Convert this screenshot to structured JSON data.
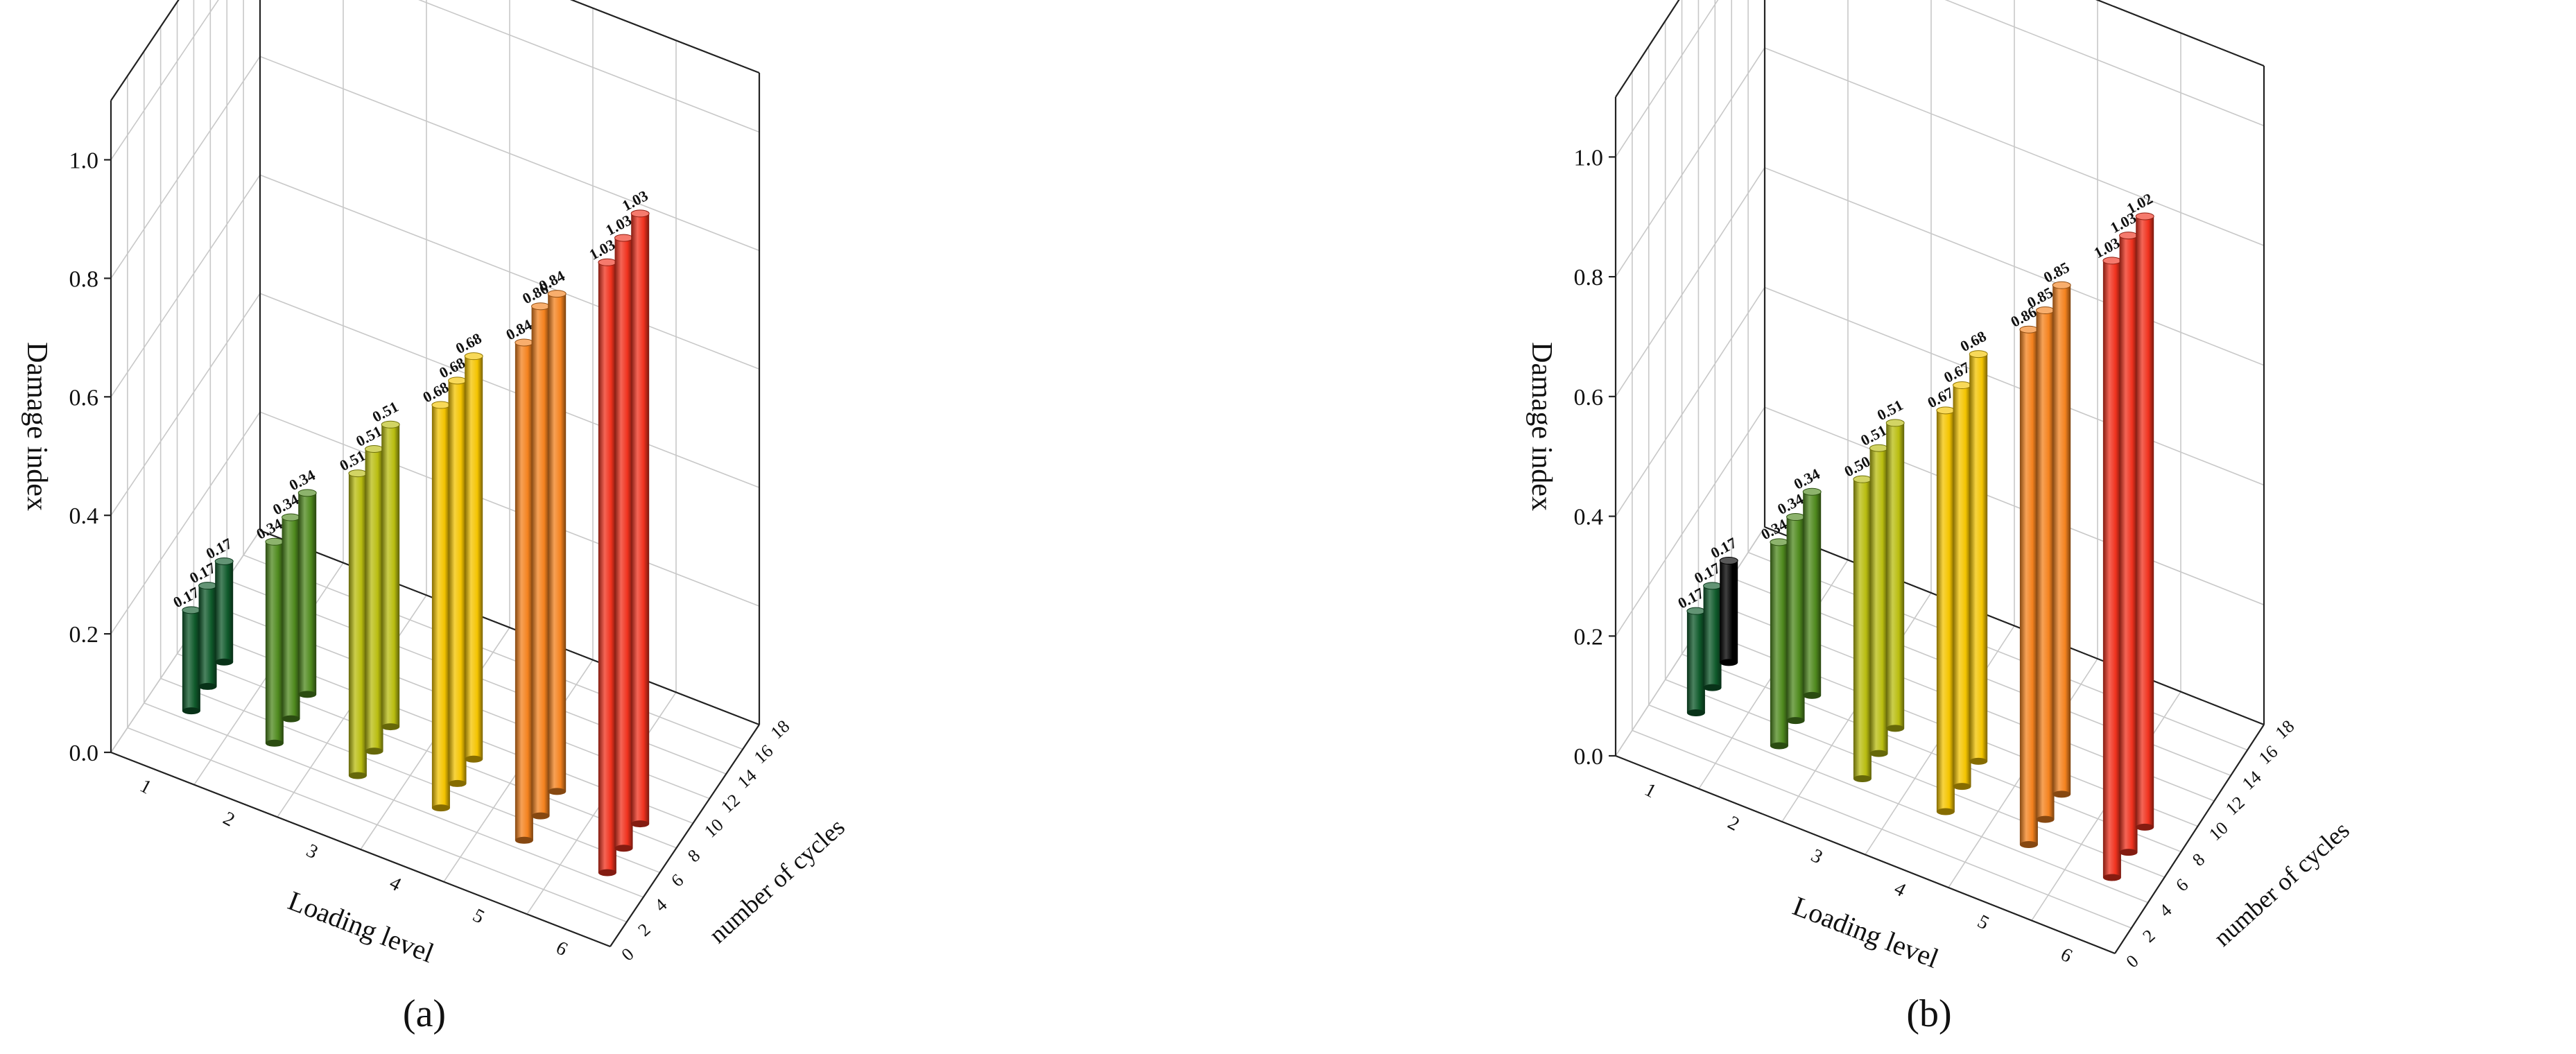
{
  "chart_data": [
    {
      "type": "bar3d",
      "panel_label": "(a)",
      "zlabel": "Damage index",
      "xlabel": "Loading level",
      "ylabel": "number of cycles",
      "zlim": [
        0,
        1.1
      ],
      "zticks": [
        "0.0",
        "0.2",
        "0.4",
        "0.6",
        "0.8",
        "1.0"
      ],
      "xticks": [
        "1",
        "2",
        "3",
        "4",
        "5",
        "6"
      ],
      "yticks": [
        "0",
        "2",
        "4",
        "6",
        "8",
        "10",
        "12",
        "14",
        "16",
        "18"
      ],
      "grid": true,
      "groups": [
        {
          "loading_level": 1,
          "color": "#0f5a2b",
          "values": [
            0.17,
            0.17,
            0.17
          ],
          "labels": [
            "0.17",
            "0.17",
            "0.17"
          ]
        },
        {
          "loading_level": 2,
          "color": "#4f8a1e",
          "values": [
            0.34,
            0.34,
            0.34
          ],
          "labels": [
            "0.34",
            "0.34",
            "0.34"
          ]
        },
        {
          "loading_level": 3,
          "color": "#b9bd10",
          "values": [
            0.51,
            0.51,
            0.51
          ],
          "labels": [
            "0.51",
            "0.51",
            "0.51"
          ]
        },
        {
          "loading_level": 4,
          "color": "#f4c400",
          "values": [
            0.68,
            0.68,
            0.68
          ],
          "labels": [
            "0.68",
            "0.68",
            "0.68"
          ]
        },
        {
          "loading_level": 5,
          "color": "#f4821e",
          "values": [
            0.84,
            0.86,
            0.84
          ],
          "labels": [
            "0.84",
            "0.86",
            "0.84"
          ]
        },
        {
          "loading_level": 6,
          "color": "#f0321e",
          "values": [
            1.03,
            1.03,
            1.03
          ],
          "labels": [
            "1.03",
            "1.03",
            "1.03"
          ]
        }
      ]
    },
    {
      "type": "bar3d",
      "panel_label": "(b)",
      "zlabel": "Damage index",
      "xlabel": "Loading level",
      "ylabel": "number of cycles",
      "zlim": [
        0,
        1.1
      ],
      "zticks": [
        "0.0",
        "0.2",
        "0.4",
        "0.6",
        "0.8",
        "1.0"
      ],
      "xticks": [
        "1",
        "2",
        "3",
        "4",
        "5",
        "6"
      ],
      "yticks": [
        "0",
        "2",
        "4",
        "6",
        "8",
        "10",
        "12",
        "14",
        "16",
        "18"
      ],
      "grid": true,
      "groups": [
        {
          "loading_level": 1,
          "color": "#0f5a2b",
          "values": [
            0.17,
            0.17,
            0.17
          ],
          "labels": [
            "0.17",
            "0.17",
            "0.17"
          ],
          "last_bar_color": "#000000"
        },
        {
          "loading_level": 2,
          "color": "#4f8a1e",
          "values": [
            0.34,
            0.34,
            0.34
          ],
          "labels": [
            "0.34",
            "0.34",
            "0.34"
          ]
        },
        {
          "loading_level": 3,
          "color": "#b9bd10",
          "values": [
            0.5,
            0.51,
            0.51
          ],
          "labels": [
            "0.50",
            "0.51",
            "0.51"
          ]
        },
        {
          "loading_level": 4,
          "color": "#f4c400",
          "values": [
            0.67,
            0.67,
            0.68
          ],
          "labels": [
            "0.67",
            "0.67",
            "0.68"
          ]
        },
        {
          "loading_level": 5,
          "color": "#f4821e",
          "values": [
            0.86,
            0.85,
            0.85
          ],
          "labels": [
            "0.86",
            "0.85",
            "0.85"
          ]
        },
        {
          "loading_level": 6,
          "color": "#f0321e",
          "values": [
            1.03,
            1.03,
            1.02
          ],
          "labels": [
            "1.03",
            "1.03",
            "1.02"
          ]
        }
      ]
    }
  ]
}
